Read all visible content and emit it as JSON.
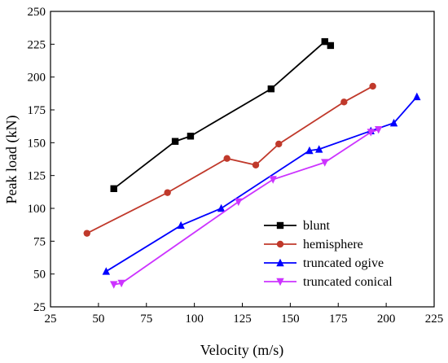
{
  "chart_data": {
    "type": "line",
    "xlabel": "Velocity (m/s)",
    "ylabel": "Peak load (kN)",
    "xlim": [
      25,
      225
    ],
    "ylim": [
      25,
      250
    ],
    "xticks": [
      25,
      50,
      75,
      100,
      125,
      150,
      175,
      200,
      225
    ],
    "yticks": [
      25,
      50,
      75,
      100,
      125,
      150,
      175,
      200,
      225,
      250
    ],
    "grid": false,
    "legend_position": "bottom-right",
    "series": [
      {
        "name": "blunt",
        "color": "#000000",
        "marker": "square",
        "points": [
          [
            58,
            115
          ],
          [
            90,
            151
          ],
          [
            98,
            155
          ],
          [
            140,
            191
          ],
          [
            168,
            227
          ],
          [
            171,
            224
          ]
        ]
      },
      {
        "name": "hemisphere",
        "color": "#c0392b",
        "marker": "circle",
        "points": [
          [
            44,
            81
          ],
          [
            86,
            112
          ],
          [
            117,
            138
          ],
          [
            132,
            133
          ],
          [
            144,
            149
          ],
          [
            178,
            181
          ],
          [
            193,
            193
          ]
        ]
      },
      {
        "name": "truncated ogive",
        "color": "#0000ff",
        "marker": "triangle-up",
        "points": [
          [
            54,
            52
          ],
          [
            93,
            87
          ],
          [
            114,
            100
          ],
          [
            160,
            144
          ],
          [
            165,
            145
          ],
          [
            192,
            159
          ],
          [
            204,
            165
          ],
          [
            216,
            185
          ]
        ]
      },
      {
        "name": "truncated conical",
        "color": "#cc33ff",
        "marker": "triangle-down",
        "points": [
          [
            58,
            42
          ],
          [
            62,
            43
          ],
          [
            123,
            105
          ],
          [
            141,
            122
          ],
          [
            168,
            135
          ],
          [
            192,
            158
          ],
          [
            196,
            160
          ]
        ]
      }
    ]
  }
}
